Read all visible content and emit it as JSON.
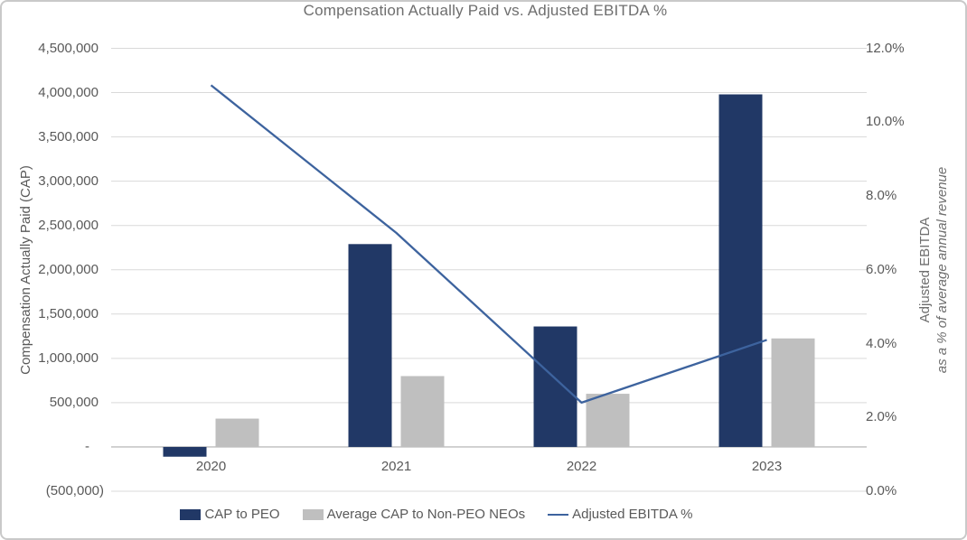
{
  "title": "Compensation Actually Paid vs. Adjusted EBITDA %",
  "colors": {
    "cap_peo_bar": "#213866",
    "cap_neo_bar": "#BFBFBF",
    "ebitda_line": "#3D639E",
    "gridline": "#D9D9D9",
    "zero_axis_line": "#BDBDBD",
    "text": "#595959"
  },
  "left_axis": {
    "title": "Compensation Actually Paid (CAP)",
    "tick_labels": [
      "4,500,000",
      "4,000,000",
      "3,500,000",
      "3,000,000",
      "2,500,000",
      "2,000,000",
      "1,500,000",
      "1,000,000",
      "500,000",
      "-",
      "(500,000)"
    ]
  },
  "right_axis": {
    "title_line1": "Adjusted EBITDA",
    "title_line2": "as a % of average annual revenue",
    "tick_labels": [
      "12.0%",
      "10.0%",
      "8.0%",
      "6.0%",
      "4.0%",
      "2.0%",
      "0.0%"
    ]
  },
  "chart_data": {
    "type": "combo",
    "title": "Compensation Actually Paid vs. Adjusted EBITDA %",
    "categories": [
      "2020",
      "2021",
      "2022",
      "2023"
    ],
    "series": [
      {
        "name": "CAP to PEO",
        "type": "bar",
        "axis": "left",
        "color_key": "cap_peo_bar",
        "values": [
          -110000,
          2290000,
          1360000,
          3980000
        ]
      },
      {
        "name": "Average CAP to Non-PEO NEOs",
        "type": "bar",
        "axis": "left",
        "color_key": "cap_neo_bar",
        "values": [
          320000,
          800000,
          600000,
          1225000
        ]
      },
      {
        "name": "Adjusted EBITDA %",
        "type": "line",
        "axis": "right",
        "color_key": "ebitda_line",
        "values": [
          11.0,
          7.0,
          2.4,
          4.1
        ]
      }
    ],
    "left_ylim": [
      -500000,
      4500000
    ],
    "left_step": 500000,
    "right_ylim": [
      0,
      12
    ],
    "right_step": 2,
    "left_ylabel": "Compensation Actually Paid (CAP)",
    "right_ylabel": "Adjusted EBITDA as a % of average annual revenue",
    "grid": true,
    "legend_position": "bottom"
  }
}
